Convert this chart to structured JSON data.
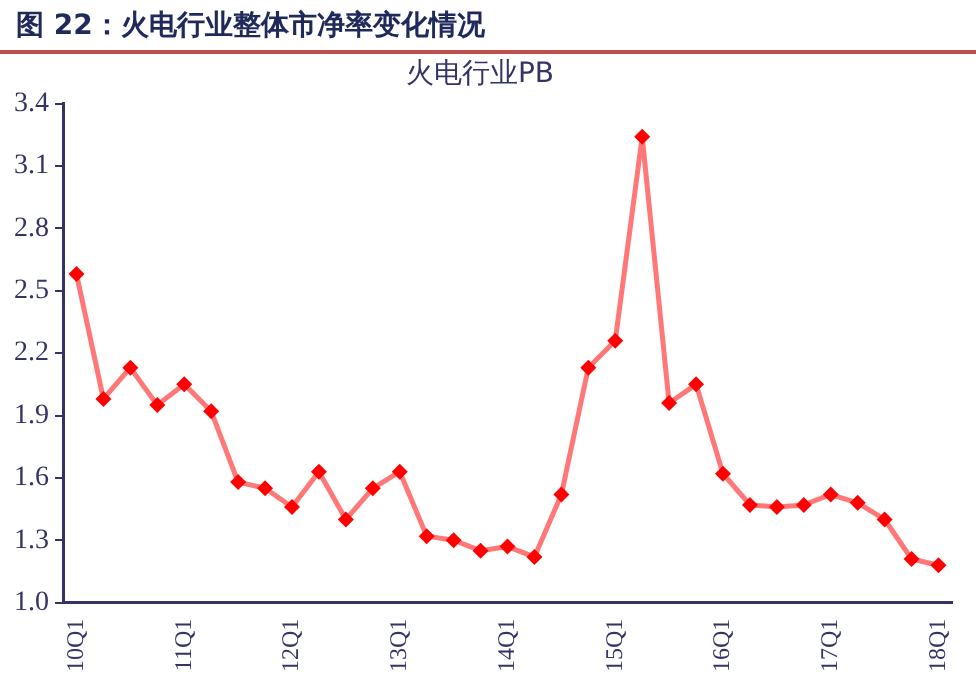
{
  "chart_data": {
    "type": "line",
    "title": "图 22：火电行业整体市净率变化情况",
    "subtitle": "火电行业PB",
    "categories": [
      "10Q1",
      null,
      null,
      null,
      "11Q1",
      null,
      null,
      null,
      "12Q1",
      null,
      null,
      null,
      "13Q1",
      null,
      null,
      null,
      "14Q1",
      null,
      null,
      null,
      "15Q1",
      null,
      null,
      null,
      "16Q1",
      null,
      null,
      null,
      "17Q1",
      null,
      null,
      null,
      "18Q1"
    ],
    "series": [
      {
        "color": "#ff0000",
        "values": [
          2.58,
          1.98,
          2.13,
          1.95,
          2.05,
          1.92,
          1.58,
          1.55,
          1.46,
          1.63,
          1.4,
          1.55,
          1.63,
          1.32,
          1.3,
          1.25,
          1.27,
          1.22,
          1.52,
          2.13,
          2.26,
          3.24,
          1.96,
          2.05,
          1.62,
          1.47,
          1.46,
          1.47,
          1.52,
          1.48,
          1.4,
          1.21,
          1.18
        ]
      }
    ],
    "ylim": [
      1.0,
      3.4
    ],
    "yticks": [
      {
        "value": 1.0,
        "label": "1.0"
      },
      {
        "value": 1.3,
        "label": "1.3"
      },
      {
        "value": 1.6,
        "label": "1.6"
      },
      {
        "value": 1.9,
        "label": "1.9"
      },
      {
        "value": 2.2,
        "label": "2.2"
      },
      {
        "value": 2.5,
        "label": "2.5"
      },
      {
        "value": 2.8,
        "label": "2.8"
      },
      {
        "value": 3.1,
        "label": "3.1"
      },
      {
        "value": 3.4,
        "label": "3.4"
      }
    ],
    "grid": false,
    "legend": false,
    "marker": "diamond",
    "line_style": "solid"
  }
}
